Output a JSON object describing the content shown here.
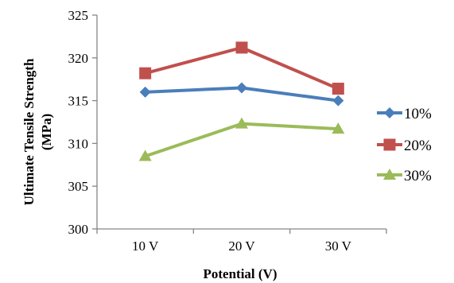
{
  "chart_data": {
    "type": "line",
    "title": "",
    "xlabel": "Potential (V)",
    "ylabel_line1": "Ultimate Tensile Strength",
    "ylabel_line2": "(MPa)",
    "categories": [
      "10 V",
      "20 V",
      "30 V"
    ],
    "ylim": [
      300,
      325
    ],
    "yticks": [
      300,
      305,
      310,
      315,
      320,
      325
    ],
    "grid": false,
    "legend_position": "right",
    "series": [
      {
        "name": "10%",
        "values": [
          316.0,
          316.5,
          315.0
        ],
        "color": "#4a7ebb",
        "marker": "diamond"
      },
      {
        "name": "20%",
        "values": [
          318.2,
          321.2,
          316.4
        ],
        "color": "#c0504d",
        "marker": "square"
      },
      {
        "name": "30%",
        "values": [
          308.5,
          312.3,
          311.7
        ],
        "color": "#9bbb59",
        "marker": "triangle"
      }
    ]
  }
}
